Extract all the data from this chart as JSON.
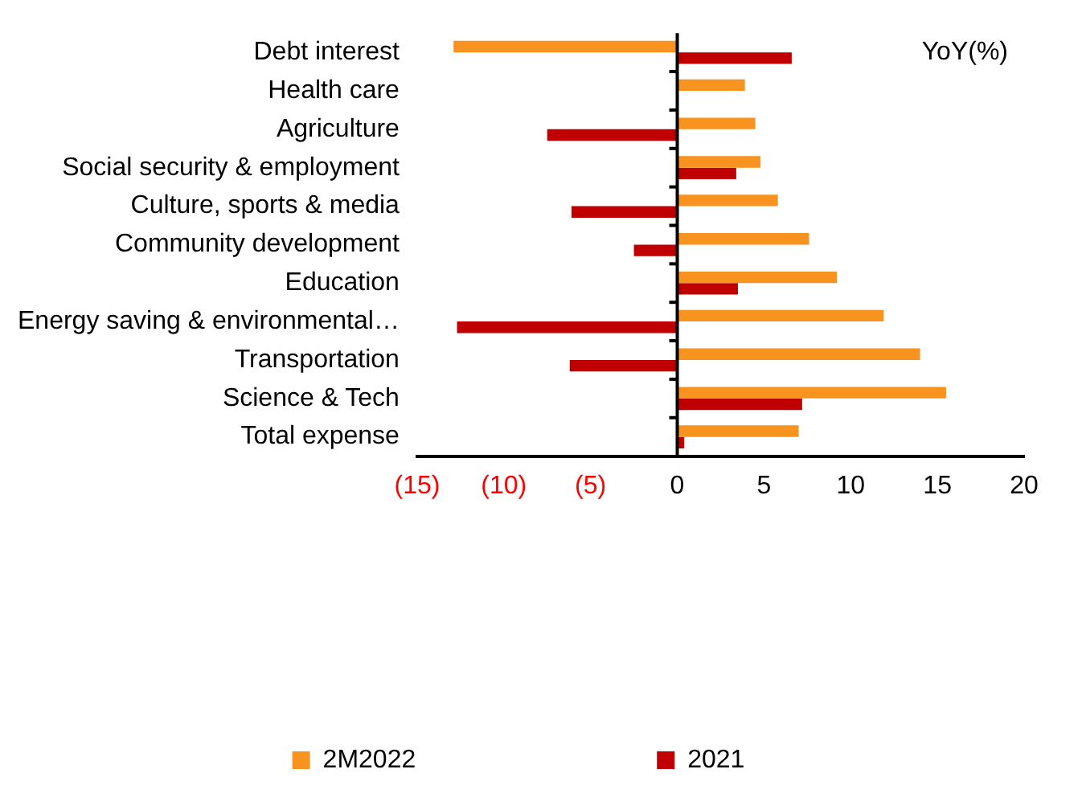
{
  "chart_data": {
    "type": "bar",
    "orientation": "horizontal",
    "annotations": [
      "YoY(%)"
    ],
    "categories": [
      "Debt interest",
      "Health care",
      "Agriculture",
      "Social security & employment",
      "Culture, sports & media",
      "Community development",
      "Education",
      "Energy saving & environmental…",
      "Transportation",
      "Science & Tech",
      "Total expense"
    ],
    "series": [
      {
        "name": "2M2022",
        "color": "#f7931e",
        "values": [
          -12.9,
          3.9,
          4.5,
          4.8,
          5.8,
          7.6,
          9.2,
          11.9,
          14.0,
          15.5,
          7.0
        ]
      },
      {
        "name": "2021",
        "color": "#c00000",
        "values": [
          6.6,
          null,
          -7.5,
          3.4,
          -6.1,
          -2.5,
          3.5,
          -12.7,
          -6.2,
          7.2,
          0.4
        ]
      }
    ],
    "xlim": [
      -15,
      20
    ],
    "xticks": [
      {
        "value": -15,
        "label": "(15)"
      },
      {
        "value": -10,
        "label": "(10)"
      },
      {
        "value": -5,
        "label": "(5)"
      },
      0,
      5,
      10,
      15,
      20
    ],
    "legend": "bottom"
  }
}
